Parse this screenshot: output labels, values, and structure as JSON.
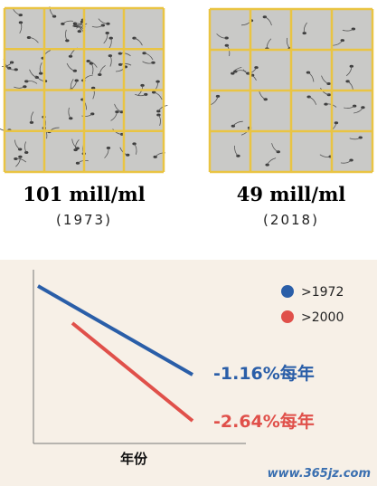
{
  "samples": [
    {
      "count": "101 mill/ml",
      "year": "(1973)"
    },
    {
      "count": "49 mill/ml",
      "year": "(2018)"
    }
  ],
  "trend": {
    "legend": [
      {
        "label": ">1972",
        "color": "#2a5ea8"
      },
      {
        "label": ">2000",
        "color": "#e0504a"
      }
    ],
    "rates": [
      "-1.16%每年",
      "-2.64%每年"
    ],
    "x_label": "年份"
  },
  "watermark": "www.365jz.com"
}
